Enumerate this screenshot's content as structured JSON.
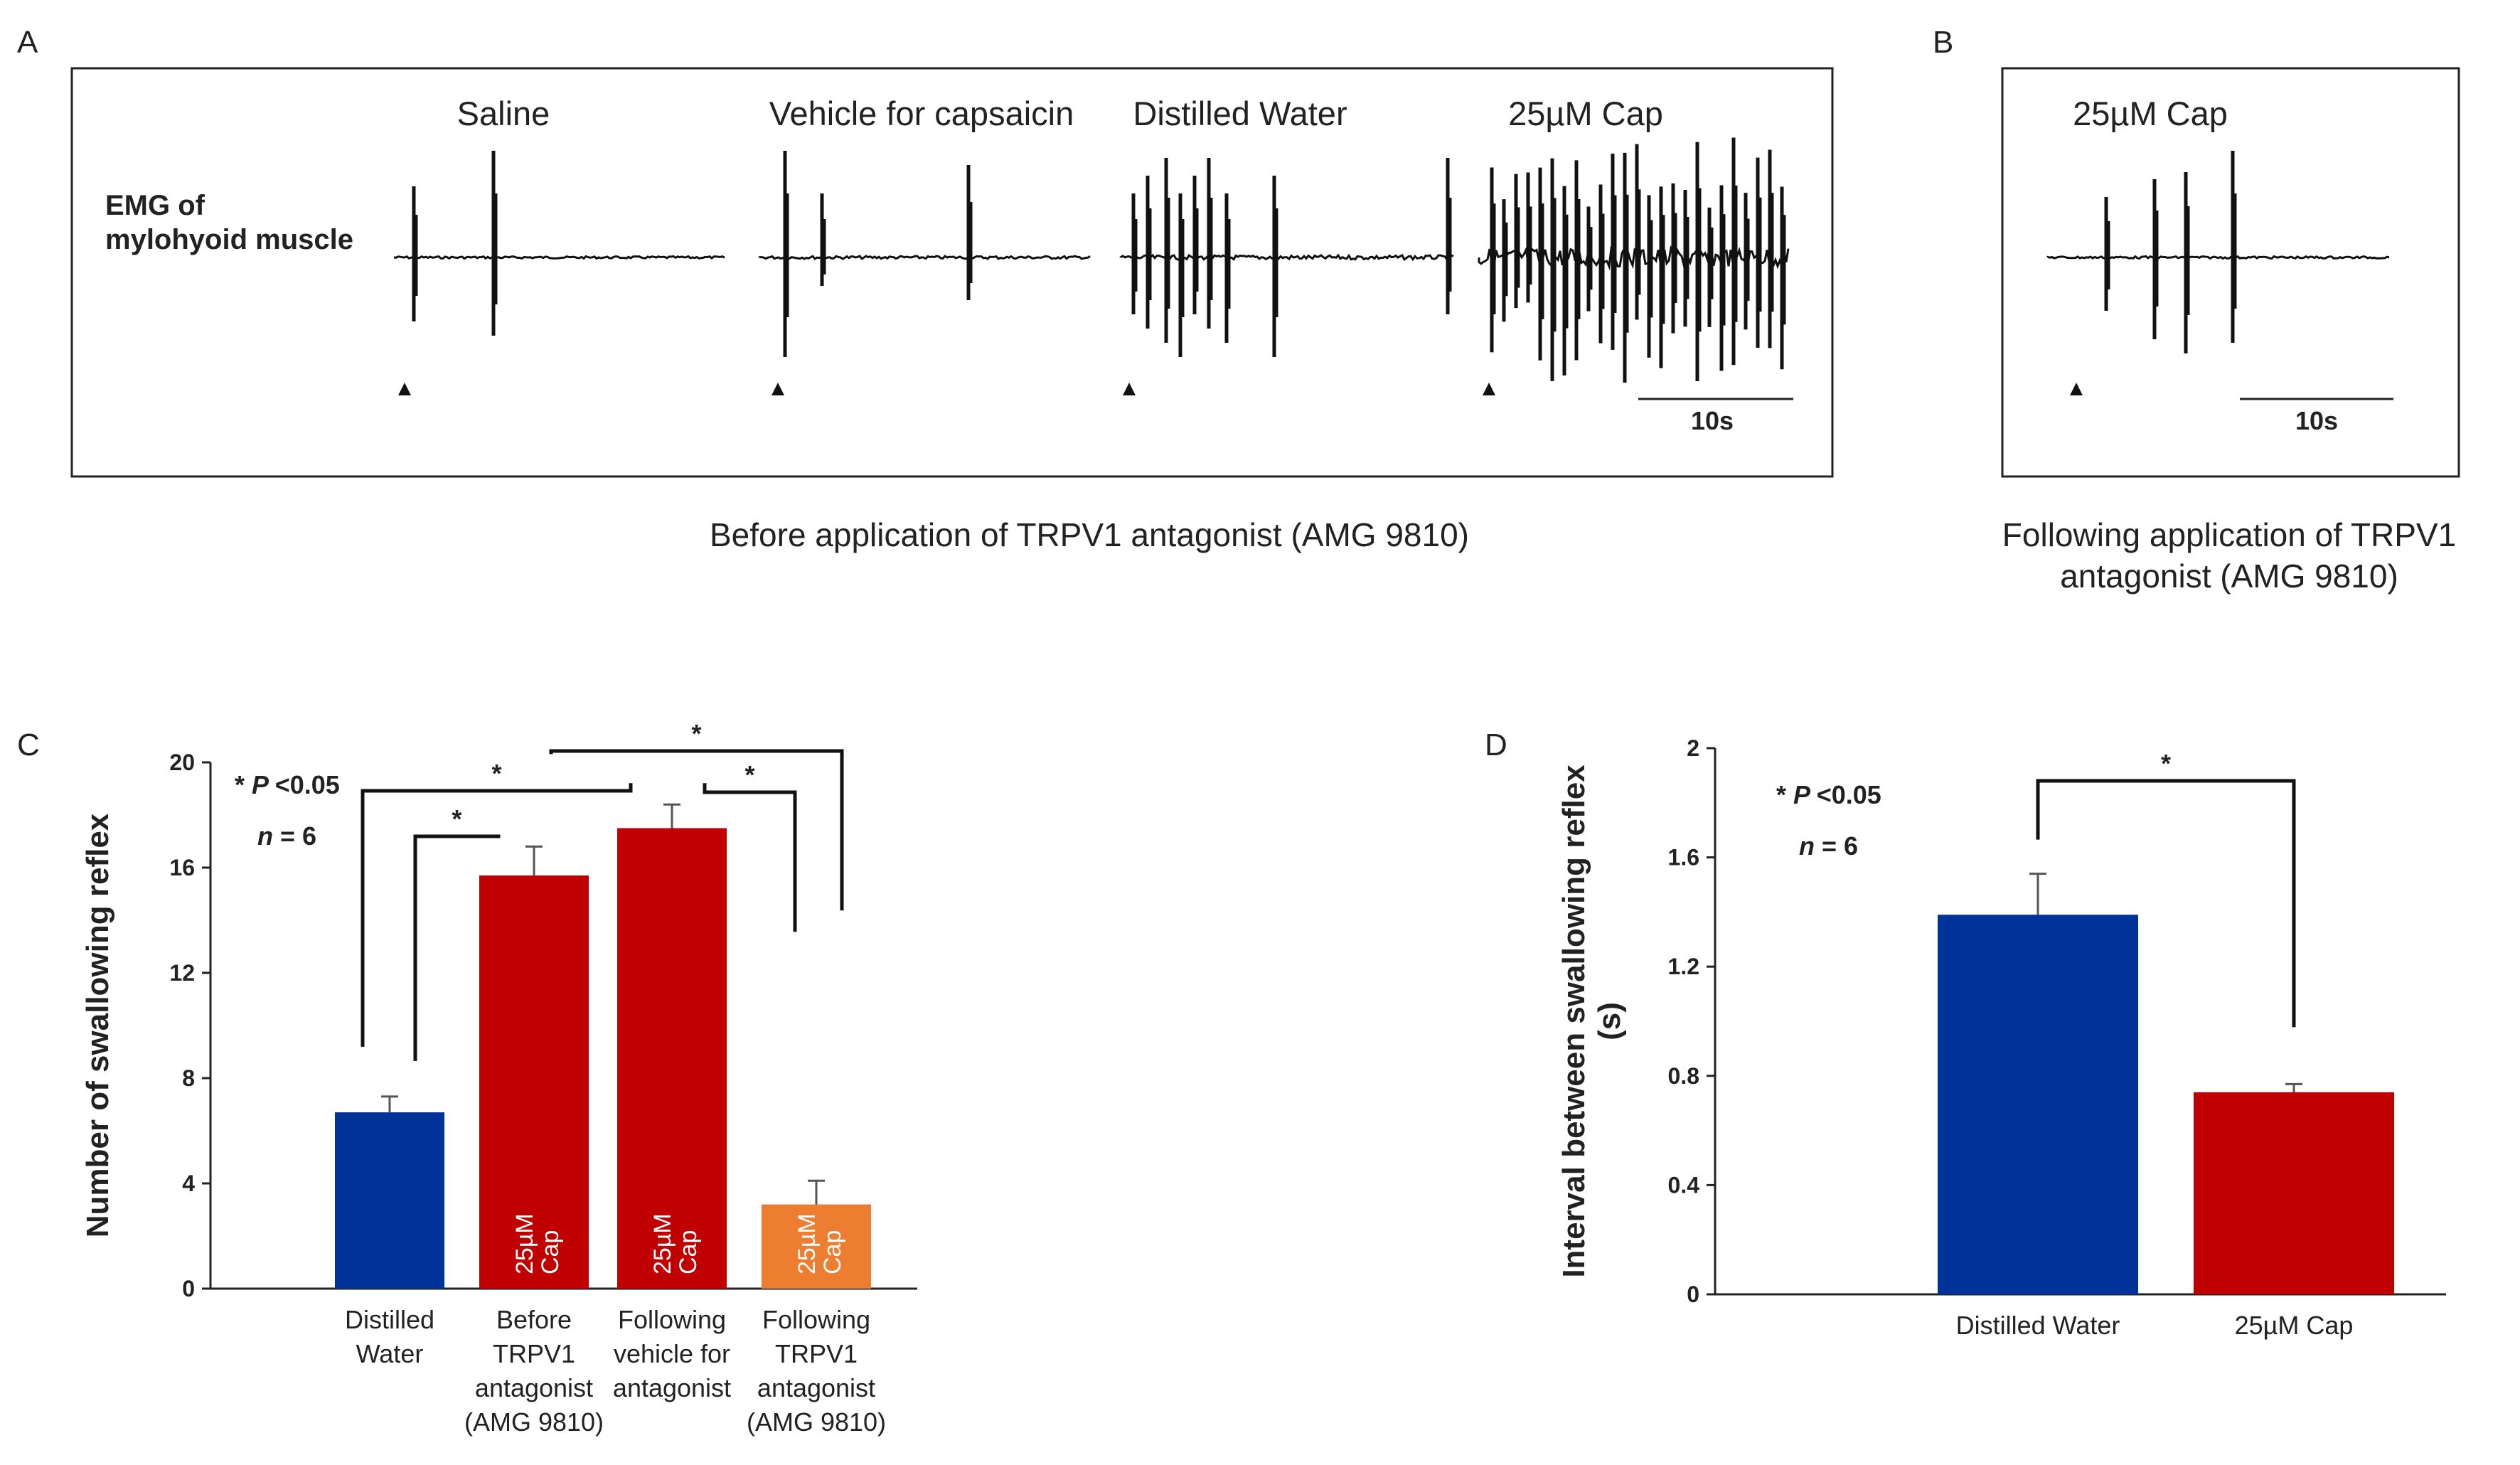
{
  "panels": {
    "a": "A",
    "b": "B",
    "c": "C",
    "d": "D"
  },
  "emg": {
    "label_line1": "EMG of",
    "label_line2": "mylohyoid muscle",
    "conditions_a": [
      "Saline",
      "Vehicle for capsaicin",
      "Distilled Water",
      "25µM Cap"
    ],
    "condition_b": "25µM Cap",
    "scale_bar": "10s",
    "caption_a": "Before application of TRPV1 antagonist (AMG 9810)",
    "caption_b_line1": "Following application of TRPV1",
    "caption_b_line2": "antagonist (AMG 9810)"
  },
  "chart_data": [
    {
      "type": "bar",
      "panel": "C",
      "ylabel": "Number of swallowing reflex",
      "ylim": [
        0,
        20
      ],
      "yticks": [
        0,
        4,
        8,
        12,
        16,
        20
      ],
      "categories": [
        [
          "Distilled",
          "Water"
        ],
        [
          "Before",
          "TRPV1",
          "antagonist",
          "(AMG 9810)"
        ],
        [
          "Following",
          "vehicle for",
          "antagonist"
        ],
        [
          "Following",
          "TRPV1",
          "antagonist",
          "(AMG 9810)"
        ]
      ],
      "values": [
        6.7,
        15.7,
        17.5,
        3.2
      ],
      "errors": [
        0.6,
        1.1,
        0.9,
        0.9
      ],
      "colors": [
        "#003399",
        "#c00000",
        "#c00000",
        "#ed7d31"
      ],
      "bar_labels": [
        "",
        "25µM Cap",
        "25µM Cap",
        "25µM Cap"
      ],
      "annotation_line1": "* P <0.05",
      "annotation_line2": "n = 6",
      "significance": [
        {
          "between": [
            0,
            1
          ],
          "label": "*"
        },
        {
          "between": [
            0,
            2
          ],
          "label": "*"
        },
        {
          "between": [
            1,
            3
          ],
          "label": "*"
        },
        {
          "between": [
            2,
            3
          ],
          "label": "*"
        }
      ]
    },
    {
      "type": "bar",
      "panel": "D",
      "ylabel": "Interval between swallowing reflex (s)",
      "ylim": [
        0,
        2
      ],
      "yticks": [
        0,
        0.4,
        0.8,
        1.2,
        1.6,
        2
      ],
      "categories": [
        "Distilled Water",
        "25µM Cap"
      ],
      "values": [
        1.39,
        0.74
      ],
      "errors": [
        0.15,
        0.03
      ],
      "colors": [
        "#003399",
        "#c00000"
      ],
      "annotation_line1": "* P <0.05",
      "annotation_line2": "n = 6",
      "significance": [
        {
          "between": [
            0,
            1
          ],
          "label": "*"
        }
      ]
    }
  ]
}
